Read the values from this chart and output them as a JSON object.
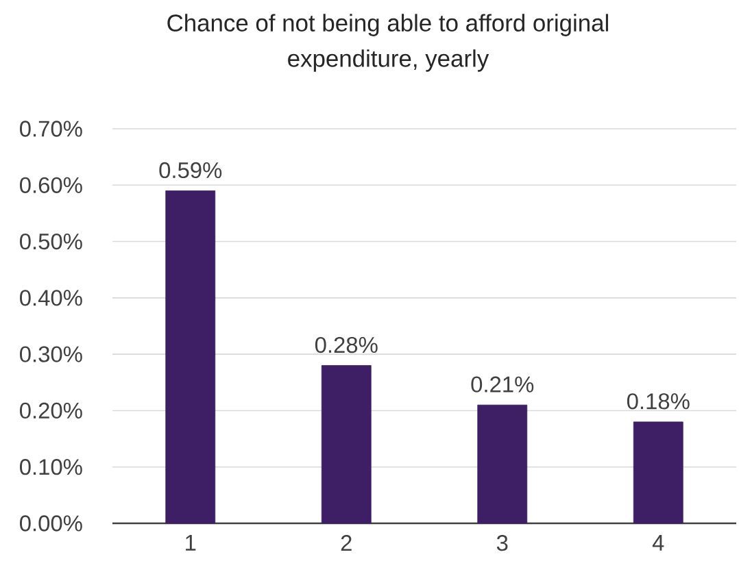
{
  "chart_data": {
    "type": "bar",
    "title": "Chance of not being able to afford original expenditure, yearly",
    "categories": [
      "1",
      "2",
      "3",
      "4"
    ],
    "values": [
      0.59,
      0.28,
      0.21,
      0.18
    ],
    "color": "#3e1f66",
    "value_labels": [
      "0.59%",
      "0.28%",
      "0.21%",
      "0.18%"
    ],
    "ylim": [
      0,
      0.7
    ],
    "yticks": [
      {
        "value": 0,
        "label": "0.00%"
      },
      {
        "value": 0.1,
        "label": "0.10%"
      },
      {
        "value": 0.2,
        "label": "0.20%"
      },
      {
        "value": 0.3,
        "label": "0.30%"
      },
      {
        "value": 0.4,
        "label": "0.40%"
      },
      {
        "value": 0.5,
        "label": "0.50%"
      },
      {
        "value": 0.6,
        "label": "0.60%"
      },
      {
        "value": 0.7,
        "label": "0.70%"
      }
    ],
    "grid": "y"
  }
}
